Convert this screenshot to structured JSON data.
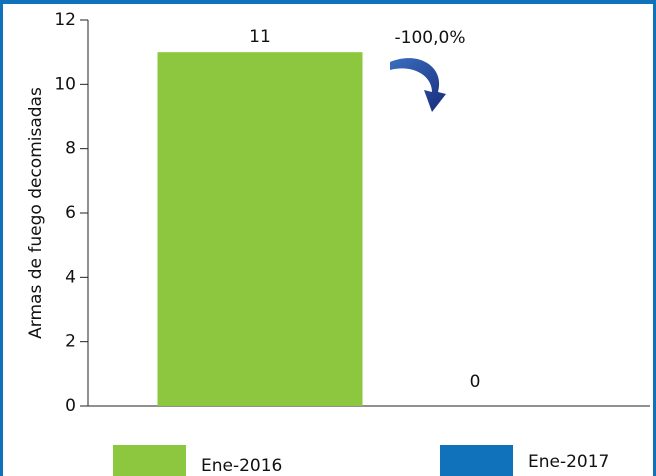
{
  "chart_data": {
    "type": "bar",
    "ylabel": "Armas de fuego decomisadas",
    "annotation": "-100,0%",
    "series": [
      {
        "name": "Ene-2016",
        "color": "#8dc63f",
        "values": [
          11
        ]
      },
      {
        "name": "Ene-2017",
        "color": "#0f72ba",
        "values": [
          0
        ]
      }
    ],
    "ylim": [
      0,
      12
    ],
    "yticks": [
      0,
      2,
      4,
      6,
      8,
      10,
      12
    ],
    "grid": false
  }
}
